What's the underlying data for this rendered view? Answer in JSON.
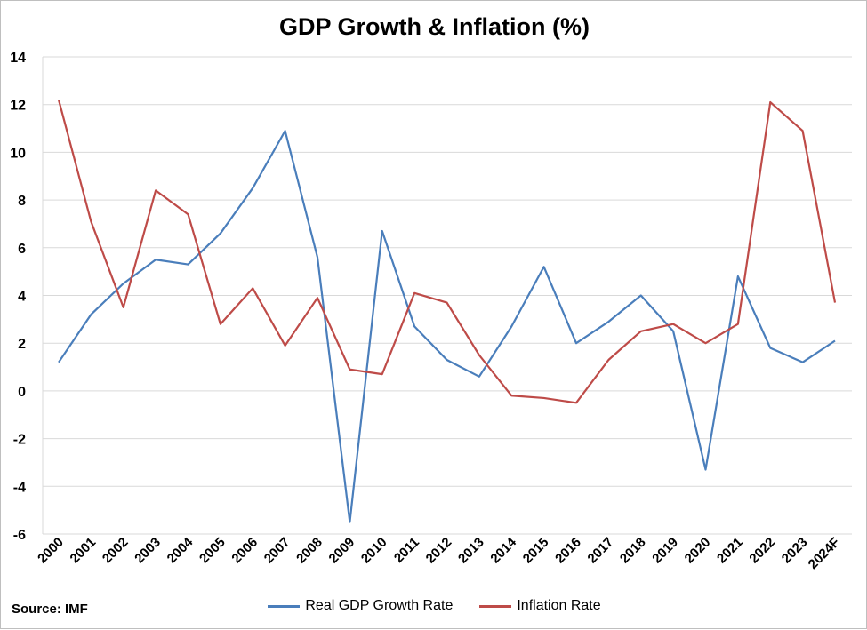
{
  "chart_data": {
    "type": "line",
    "title": "GDP Growth & Inflation (%)",
    "xlabel": "",
    "ylabel": "",
    "categories": [
      "2000",
      "2001",
      "2002",
      "2003",
      "2004",
      "2005",
      "2006",
      "2007",
      "2008",
      "2009",
      "2010",
      "2011",
      "2012",
      "2013",
      "2014",
      "2015",
      "2016",
      "2017",
      "2018",
      "2019",
      "2020",
      "2021",
      "2022",
      "2023",
      "2024F"
    ],
    "ylim": [
      -6,
      14
    ],
    "yticks": [
      -6,
      -4,
      -2,
      0,
      2,
      4,
      6,
      8,
      10,
      12,
      14
    ],
    "grid": true,
    "legend_position": "bottom",
    "series": [
      {
        "name": "Real GDP Growth Rate",
        "color": "#4a7ebb",
        "values": [
          1.2,
          3.2,
          4.5,
          5.5,
          5.3,
          6.6,
          8.5,
          10.9,
          5.6,
          -5.5,
          6.7,
          2.7,
          1.3,
          0.6,
          2.7,
          5.2,
          2.0,
          2.9,
          4.0,
          2.5,
          -3.3,
          4.8,
          1.8,
          1.2,
          2.1
        ]
      },
      {
        "name": "Inflation Rate",
        "color": "#be4b48",
        "values": [
          12.2,
          7.1,
          3.5,
          8.4,
          7.4,
          2.8,
          4.3,
          1.9,
          3.9,
          0.9,
          0.7,
          4.1,
          3.7,
          1.5,
          -0.2,
          -0.3,
          -0.5,
          1.3,
          2.5,
          2.8,
          2.0,
          2.8,
          12.1,
          10.9,
          3.7
        ]
      }
    ],
    "source": "Source: IMF"
  }
}
